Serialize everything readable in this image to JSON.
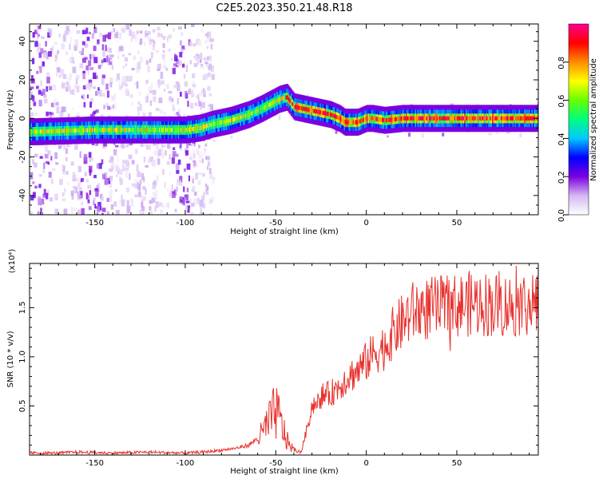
{
  "title": "C2E5.2023.350.21.48.R18",
  "colors": {
    "snr_line": "#e8322e",
    "axis": "#000000",
    "background": "#ffffff"
  },
  "chart_data": [
    {
      "type": "heatmap",
      "title": "C2E5.2023.350.21.48.R18",
      "xlabel": "Height of straight line (km)",
      "ylabel": "Frequency (Hz)",
      "xlim": [
        -186,
        95
      ],
      "ylim": [
        -50,
        49
      ],
      "x_ticks": [
        -150,
        -100,
        -50,
        0,
        50
      ],
      "y_ticks": [
        -40,
        -20,
        0,
        20,
        40
      ],
      "x_tick_labels": [
        "-150",
        "-100",
        "-50",
        "0",
        "50"
      ],
      "y_tick_labels": [
        "-40",
        "-20",
        "0",
        "20",
        "40"
      ],
      "ridge": {
        "x": [
          -186,
          -150,
          -120,
          -100,
          -92,
          -85,
          -75,
          -65,
          -58,
          -52,
          -48,
          -44,
          -40,
          -30,
          -20,
          -15,
          -12,
          -5,
          0,
          3,
          10,
          20,
          40,
          60,
          95
        ],
        "y": [
          -7,
          -6,
          -6,
          -6,
          -5,
          -3,
          -1,
          2,
          5,
          8,
          10,
          11,
          6,
          4,
          2,
          0,
          -2,
          -2,
          0,
          0,
          -1,
          0,
          0,
          0,
          0
        ]
      },
      "colorbar": {
        "label": "Normalized spectral amplitude",
        "range": [
          0,
          1
        ],
        "ticks": [
          0.0,
          0.2,
          0.4,
          0.6,
          0.8
        ],
        "tick_labels": [
          "0.0",
          "0.2",
          "0.4",
          "0.6",
          "0.8"
        ],
        "colormap": [
          "#ffffff",
          "#d4b8f0",
          "#7a00e0",
          "#0000ff",
          "#00c8ff",
          "#00ff80",
          "#66ff00",
          "#ffff00",
          "#ff8c00",
          "#ff0000",
          "#ff0090"
        ]
      }
    },
    {
      "type": "line",
      "xlabel": "Height of straight line (km)",
      "ylabel": "SNR (10 * v/v)",
      "y_scale_label": "(x10⁴)",
      "xlim": [
        -186,
        95
      ],
      "ylim": [
        0,
        1.95
      ],
      "x_ticks": [
        -150,
        -100,
        -50,
        0,
        50
      ],
      "y_ticks": [
        0.5,
        1.0,
        1.5
      ],
      "x_tick_labels": [
        "-150",
        "-100",
        "-50",
        "0",
        "50"
      ],
      "y_tick_labels": [
        "0.5",
        "1.0",
        "1.5"
      ],
      "series": [
        {
          "color": "#e8322e",
          "x": [
            -186,
            -170,
            -160,
            -140,
            -120,
            -100,
            -90,
            -80,
            -72,
            -65,
            -58,
            -55,
            -52,
            -50,
            -47,
            -44,
            -40,
            -36,
            -33,
            -30,
            -25,
            -20,
            -15,
            -10,
            -5,
            0,
            5,
            10,
            15,
            20,
            25,
            30,
            40,
            50,
            60,
            70,
            80,
            90,
            95
          ],
          "y": [
            0.02,
            0.02,
            0.03,
            0.02,
            0.03,
            0.02,
            0.03,
            0.05,
            0.07,
            0.1,
            0.2,
            0.3,
            0.38,
            0.45,
            0.32,
            0.15,
            0.05,
            0.03,
            0.25,
            0.5,
            0.6,
            0.62,
            0.7,
            0.8,
            0.85,
            0.95,
            1.05,
            1.1,
            1.25,
            1.35,
            1.45,
            1.48,
            1.5,
            1.52,
            1.55,
            1.53,
            1.52,
            1.55,
            1.5
          ]
        }
      ]
    }
  ]
}
